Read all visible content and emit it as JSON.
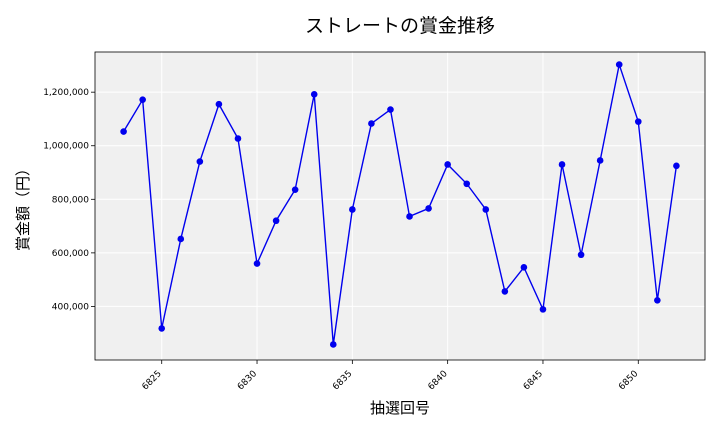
{
  "chart_data": {
    "type": "line",
    "title": "ストレートの賞金推移",
    "xlabel": "抽選回号",
    "ylabel": "賞金額（円）",
    "x": [
      6823,
      6824,
      6825,
      6826,
      6827,
      6828,
      6829,
      6830,
      6831,
      6832,
      6833,
      6834,
      6835,
      6836,
      6837,
      6838,
      6839,
      6840,
      6841,
      6842,
      6843,
      6844,
      6845,
      6846,
      6847,
      6848,
      6849,
      6850,
      6851,
      6852
    ],
    "series": [
      {
        "values": [
          1053000,
          1172000,
          318000,
          652000,
          941000,
          1155000,
          1027000,
          560000,
          720000,
          836000,
          1192000,
          258000,
          762000,
          1083000,
          1135000,
          736000,
          766000,
          930000,
          858000,
          762000,
          456000,
          546000,
          389000,
          930000,
          593000,
          945000,
          1303000,
          1090000,
          423000,
          925000
        ],
        "color": "#0000ee"
      }
    ],
    "xlim": [
      6821.5,
      6853.5
    ],
    "ylim": [
      200000,
      1350000
    ],
    "xticks": [
      6825,
      6830,
      6835,
      6840,
      6845,
      6850
    ],
    "xtick_labels": [
      "6825",
      "6830",
      "6835",
      "6840",
      "6845",
      "6850"
    ],
    "yticks": [
      400000,
      600000,
      800000,
      1000000,
      1200000
    ],
    "ytick_labels": [
      "400,000",
      "600,000",
      "800,000",
      "1,000,000",
      "1,200,000"
    ],
    "grid": true,
    "background": "#f0f0f0",
    "line_color": "#0000ee"
  }
}
